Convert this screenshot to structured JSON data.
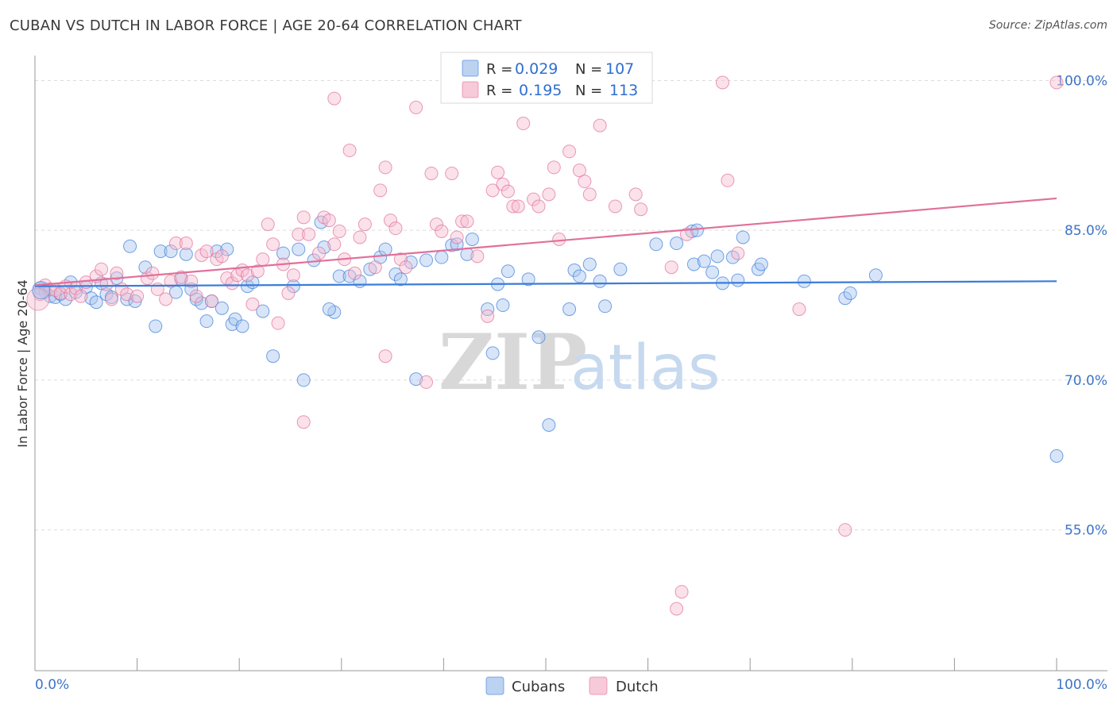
{
  "title": "CUBAN VS DUTCH IN LABOR FORCE | AGE 20-64 CORRELATION CHART",
  "source": "Source: ZipAtlas.com",
  "watermark": {
    "zip": "ZIP",
    "atlas": "atlas"
  },
  "legend_top": {
    "rows": [
      {
        "r_label": "R = ",
        "r_value": "0.029",
        "n_label": "N = ",
        "n_value": "107",
        "color": "#8fb4e8"
      },
      {
        "r_label": "R = ",
        "r_value": "0.195",
        "n_label": "N = ",
        "n_value": "113",
        "color": "#f2a6c0"
      }
    ]
  },
  "legend_bottom": [
    {
      "label": "Cubans",
      "color": "#8fb4e8"
    },
    {
      "label": "Dutch",
      "color": "#f2a6c0"
    }
  ],
  "chart_data": {
    "type": "scatter",
    "title": "CUBAN VS DUTCH IN LABOR FORCE | AGE 20-64 CORRELATION CHART",
    "xlabel": "",
    "ylabel": "In Labor Force | Age 20-64",
    "xlim": [
      0,
      100
    ],
    "ylim": [
      40.9,
      102.5
    ],
    "x_tick_labels": [
      "0.0%",
      "100.0%"
    ],
    "y_ticks": [
      55,
      70,
      85,
      100
    ],
    "y_tick_labels": [
      "55.0%",
      "70.0%",
      "85.0%",
      "100.0%"
    ],
    "grid": true,
    "legend_position": "top-center",
    "series": [
      {
        "name": "Cubans",
        "color": "#3b7dd8",
        "fill": "#a8c6f0",
        "R": 0.029,
        "N": 107,
        "trend": {
          "x": [
            0,
            100
          ],
          "y": [
            79.4,
            79.9
          ]
        },
        "points": [
          [
            0.5,
            79.2
          ],
          [
            1,
            78.8
          ],
          [
            1.5,
            78.4
          ],
          [
            2,
            78.3
          ],
          [
            2.5,
            78.6
          ],
          [
            3,
            78.1
          ],
          [
            3.5,
            79.8
          ],
          [
            4,
            78.8
          ],
          [
            5,
            79.3
          ],
          [
            5.5,
            78.2
          ],
          [
            6,
            77.8
          ],
          [
            6.5,
            79.7
          ],
          [
            7,
            78.6
          ],
          [
            7.5,
            78.3
          ],
          [
            8,
            80.2
          ],
          [
            9,
            78.1
          ],
          [
            9.8,
            77.9
          ],
          [
            9.3,
            83.4
          ],
          [
            10.8,
            81.3
          ],
          [
            11.8,
            75.4
          ],
          [
            12.3,
            82.9
          ],
          [
            13.3,
            82.9
          ],
          [
            13.8,
            78.8
          ],
          [
            14.3,
            80.1
          ],
          [
            14.8,
            82.6
          ],
          [
            15.3,
            79.1
          ],
          [
            15.8,
            78.1
          ],
          [
            16.3,
            77.7
          ],
          [
            16.8,
            75.9
          ],
          [
            17.3,
            77.9
          ],
          [
            17.8,
            82.9
          ],
          [
            18.3,
            77.2
          ],
          [
            18.8,
            83.1
          ],
          [
            19.3,
            75.6
          ],
          [
            19.6,
            76.1
          ],
          [
            20.3,
            75.4
          ],
          [
            20.8,
            79.4
          ],
          [
            21.3,
            79.8
          ],
          [
            22.3,
            76.9
          ],
          [
            23.3,
            72.4
          ],
          [
            24.3,
            82.7
          ],
          [
            25.3,
            79.4
          ],
          [
            25.8,
            83.1
          ],
          [
            26.3,
            70.0
          ],
          [
            27.3,
            82.0
          ],
          [
            28,
            85.8
          ],
          [
            28.3,
            83.3
          ],
          [
            29.3,
            76.8
          ],
          [
            28.8,
            77.1
          ],
          [
            29.8,
            80.4
          ],
          [
            30.8,
            80.4
          ],
          [
            31.8,
            79.9
          ],
          [
            32.8,
            81.1
          ],
          [
            33.8,
            82.3
          ],
          [
            34.3,
            83.1
          ],
          [
            35.3,
            80.6
          ],
          [
            35.8,
            80.1
          ],
          [
            36.8,
            81.8
          ],
          [
            37.3,
            70.1
          ],
          [
            38.3,
            82.0
          ],
          [
            39.8,
            82.3
          ],
          [
            40.8,
            83.5
          ],
          [
            41.3,
            83.6
          ],
          [
            42.3,
            82.6
          ],
          [
            42.8,
            84.1
          ],
          [
            44.3,
            77.1
          ],
          [
            44.8,
            72.7
          ],
          [
            45.3,
            79.6
          ],
          [
            45.8,
            77.5
          ],
          [
            46.3,
            80.9
          ],
          [
            48.3,
            80.1
          ],
          [
            49.3,
            74.3
          ],
          [
            50.3,
            65.5
          ],
          [
            52.3,
            77.1
          ],
          [
            52.8,
            81.0
          ],
          [
            53.3,
            80.4
          ],
          [
            54.3,
            81.6
          ],
          [
            55.3,
            79.9
          ],
          [
            55.8,
            77.4
          ],
          [
            57.3,
            81.1
          ],
          [
            60.8,
            83.6
          ],
          [
            62.8,
            83.7
          ],
          [
            64.3,
            84.9
          ],
          [
            64.8,
            85.0
          ],
          [
            64.5,
            81.6
          ],
          [
            65.5,
            81.9
          ],
          [
            66.3,
            80.8
          ],
          [
            66.8,
            82.4
          ],
          [
            67.3,
            79.7
          ],
          [
            68.3,
            82.3
          ],
          [
            68.8,
            80.0
          ],
          [
            69.3,
            84.3
          ],
          [
            70.8,
            81.1
          ],
          [
            71.1,
            81.6
          ],
          [
            75.3,
            79.9
          ],
          [
            79.3,
            78.2
          ],
          [
            79.8,
            78.7
          ],
          [
            82.3,
            80.5
          ],
          [
            100,
            62.4
          ]
        ]
      },
      {
        "name": "Dutch",
        "color": "#e0709a",
        "fill": "#f7bcd0",
        "R": 0.195,
        "N": 113,
        "trend": {
          "x": [
            0,
            100
          ],
          "y": [
            79.5,
            88.2
          ]
        },
        "points": [
          [
            0.5,
            78.6
          ],
          [
            1,
            79.5
          ],
          [
            1.5,
            79.1
          ],
          [
            2,
            79.0
          ],
          [
            2.5,
            78.7
          ],
          [
            3,
            79.4
          ],
          [
            3.5,
            78.6
          ],
          [
            4,
            79.2
          ],
          [
            4.5,
            78.4
          ],
          [
            5,
            79.8
          ],
          [
            6,
            80.4
          ],
          [
            6.5,
            81.1
          ],
          [
            7,
            79.6
          ],
          [
            7.5,
            78.1
          ],
          [
            8,
            80.7
          ],
          [
            8.5,
            79.1
          ],
          [
            9,
            78.6
          ],
          [
            10,
            78.4
          ],
          [
            11,
            80.2
          ],
          [
            11.5,
            80.7
          ],
          [
            12,
            79.1
          ],
          [
            12.8,
            78.1
          ],
          [
            13.3,
            79.9
          ],
          [
            13.8,
            83.7
          ],
          [
            14.3,
            80.3
          ],
          [
            14.8,
            83.7
          ],
          [
            15.3,
            79.9
          ],
          [
            15.8,
            78.4
          ],
          [
            16.3,
            82.5
          ],
          [
            16.8,
            82.9
          ],
          [
            17.3,
            77.9
          ],
          [
            17.8,
            82.1
          ],
          [
            18.3,
            82.4
          ],
          [
            18.8,
            80.2
          ],
          [
            19.3,
            79.7
          ],
          [
            19.8,
            80.5
          ],
          [
            20.3,
            81.0
          ],
          [
            20.8,
            80.5
          ],
          [
            21.3,
            77.6
          ],
          [
            21.8,
            80.9
          ],
          [
            22.3,
            82.1
          ],
          [
            22.8,
            85.6
          ],
          [
            23.3,
            83.6
          ],
          [
            23.8,
            75.7
          ],
          [
            24.3,
            81.6
          ],
          [
            24.8,
            78.7
          ],
          [
            25.3,
            80.5
          ],
          [
            25.8,
            84.6
          ],
          [
            26.3,
            86.3
          ],
          [
            26.8,
            84.6
          ],
          [
            27.8,
            82.7
          ],
          [
            28.3,
            86.3
          ],
          [
            28.8,
            86.0
          ],
          [
            29.3,
            83.6
          ],
          [
            29.8,
            84.9
          ],
          [
            30.3,
            82.1
          ],
          [
            30.8,
            93.0
          ],
          [
            31.3,
            80.7
          ],
          [
            31.8,
            84.3
          ],
          [
            32.3,
            85.6
          ],
          [
            33.3,
            81.3
          ],
          [
            33.8,
            89.0
          ],
          [
            34.3,
            91.3
          ],
          [
            34.8,
            86.0
          ],
          [
            35.3,
            85.2
          ],
          [
            35.8,
            82.1
          ],
          [
            36.3,
            81.3
          ],
          [
            37.3,
            97.3
          ],
          [
            38.3,
            69.8
          ],
          [
            38.8,
            90.7
          ],
          [
            39.3,
            85.6
          ],
          [
            39.8,
            84.9
          ],
          [
            40.8,
            90.7
          ],
          [
            41.3,
            84.3
          ],
          [
            41.8,
            85.9
          ],
          [
            42.3,
            85.9
          ],
          [
            43.3,
            82.4
          ],
          [
            44.3,
            76.4
          ],
          [
            44.8,
            89.0
          ],
          [
            45.3,
            90.8
          ],
          [
            45.8,
            89.6
          ],
          [
            46.3,
            88.9
          ],
          [
            46.8,
            87.4
          ],
          [
            47.3,
            87.4
          ],
          [
            47.8,
            95.7
          ],
          [
            48.8,
            88.1
          ],
          [
            49.3,
            87.4
          ],
          [
            50.8,
            91.3
          ],
          [
            51.3,
            84.1
          ],
          [
            52.3,
            92.9
          ],
          [
            53.3,
            91.0
          ],
          [
            53.8,
            89.9
          ],
          [
            54.3,
            88.6
          ],
          [
            55.3,
            95.5
          ],
          [
            56.8,
            87.4
          ],
          [
            58.8,
            88.6
          ],
          [
            59.3,
            87.1
          ],
          [
            62.3,
            81.3
          ],
          [
            62.8,
            47.1
          ],
          [
            63.3,
            48.8
          ],
          [
            63.8,
            84.6
          ],
          [
            67.3,
            99.8
          ],
          [
            67.8,
            90.0
          ],
          [
            68.8,
            82.7
          ],
          [
            74.8,
            77.1
          ],
          [
            79.3,
            55.0
          ],
          [
            100,
            99.8
          ],
          [
            26.3,
            65.8
          ],
          [
            34.3,
            72.4
          ],
          [
            29.3,
            98.2
          ],
          [
            50.3,
            88.6
          ]
        ]
      }
    ]
  }
}
